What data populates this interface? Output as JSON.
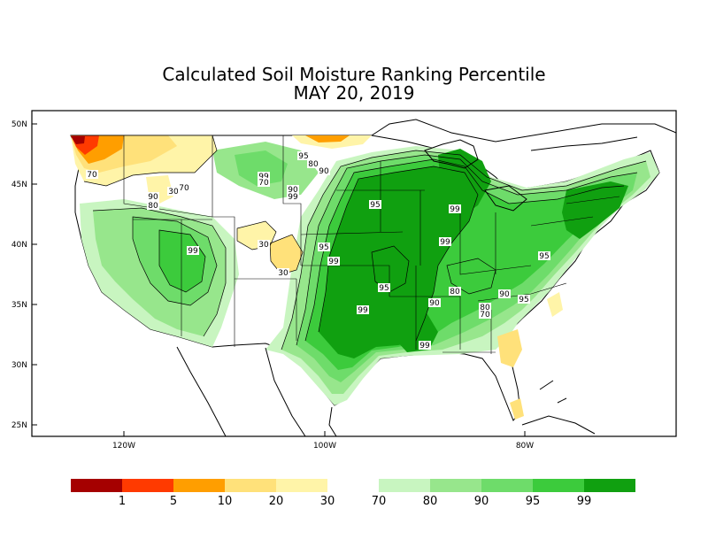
{
  "title": "Calculated Soil Moisture Ranking Percentile",
  "date": "MAY 20, 2019",
  "lat_labels": [
    "50N",
    "45N",
    "40N",
    "35N",
    "30N",
    "25N"
  ],
  "lon_labels": [
    "120W",
    "100W",
    "80W"
  ],
  "contour_labels": [
    "70",
    "30",
    "70",
    "80",
    "90",
    "95",
    "99",
    "70",
    "90",
    "80",
    "90",
    "99",
    "95",
    "99",
    "99",
    "99",
    "95",
    "95",
    "30",
    "30",
    "95",
    "99",
    "95",
    "90",
    "80",
    "90",
    "95",
    "80",
    "70",
    "99",
    "99",
    "99"
  ],
  "legend": {
    "colors": [
      "#a50000",
      "#ff3a00",
      "#ff9e00",
      "#ffe17a",
      "#fff4a8",
      "#ffffff",
      "#c8f5c0",
      "#97e68c",
      "#6edc6a",
      "#3ccb3c",
      "#10a010"
    ],
    "labels": [
      "1",
      "5",
      "10",
      "20",
      "30",
      "70",
      "80",
      "90",
      "95",
      "99"
    ]
  },
  "palette": {
    "land_normal": "#ffffff",
    "green_70": "#c8f5c0",
    "green_80": "#97e68c",
    "green_90": "#6edc6a",
    "green_95": "#3ccb3c",
    "green_99": "#10a010",
    "yellow_30": "#fff4a8",
    "yellow_20": "#ffe17a",
    "orange_10": "#ff9e00",
    "red_5": "#ff3a00",
    "red_1": "#a50000"
  }
}
